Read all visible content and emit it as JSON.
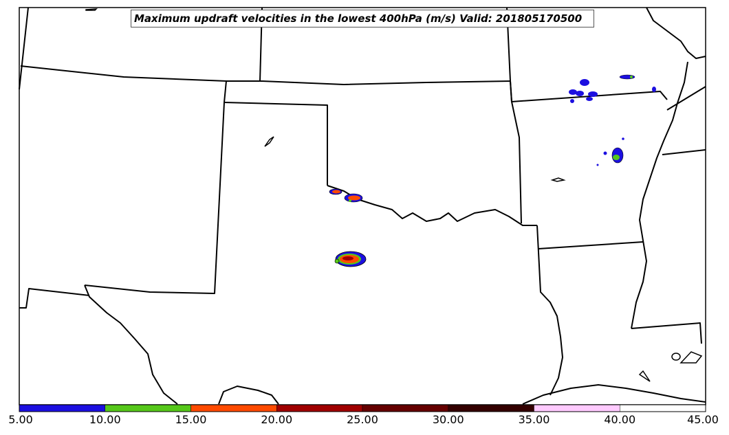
{
  "title": "Maximum updraft velocities in the lowest 400hPa (m/s) Valid: 201805170500",
  "colorbar": {
    "ticks": [
      "5.00",
      "10.00",
      "15.00",
      "20.00",
      "25.00",
      "30.00",
      "35.00",
      "40.00",
      "45.00"
    ],
    "bins": [
      {
        "from": 5,
        "to": 10,
        "color": "#1c0fe0"
      },
      {
        "from": 10,
        "to": 15,
        "color": "#56c81a"
      },
      {
        "from": 15,
        "to": 20,
        "color": "#ff4a00"
      },
      {
        "from": 20,
        "to": 25,
        "color": "#a00000"
      },
      {
        "from": 25,
        "to": 30,
        "color": "#650000"
      },
      {
        "from": 30,
        "to": 35,
        "color": "#330000"
      },
      {
        "from": 35,
        "to": 40,
        "color": "#ffcaff"
      },
      {
        "from": 40,
        "to": 45,
        "color": "#ffffff"
      }
    ]
  },
  "colors": {
    "border": "#000000",
    "background": "#ffffff"
  }
}
